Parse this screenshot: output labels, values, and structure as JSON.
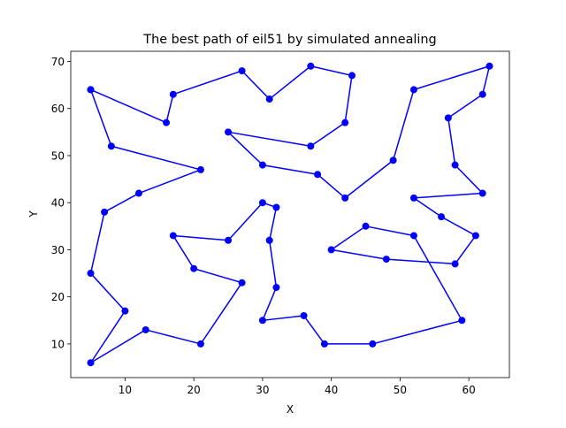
{
  "chart_data": {
    "type": "line",
    "title": "The best path of eil51 by simulated annealing",
    "xlabel": "X",
    "ylabel": "Y",
    "xlim": [
      2.1,
      65.9
    ],
    "ylim": [
      2.85,
      72.15
    ],
    "xticks": [
      10,
      20,
      30,
      40,
      50,
      60
    ],
    "yticks": [
      10,
      20,
      30,
      40,
      50,
      60,
      70
    ],
    "grid": false,
    "legend": "none",
    "series": [
      {
        "color": "#0000ff",
        "marker": "circle",
        "x": [
          5,
          16,
          17,
          27,
          31,
          37,
          43,
          42,
          37,
          25,
          30,
          38,
          42,
          49,
          52,
          63,
          62,
          57,
          58,
          62,
          52,
          56,
          61,
          58,
          48,
          40,
          45,
          52,
          59,
          46,
          39,
          36,
          30,
          32,
          31,
          32,
          30,
          25,
          17,
          20,
          27,
          21,
          13,
          5,
          10,
          5,
          7,
          12,
          21,
          8,
          5
        ],
        "y": [
          64,
          57,
          63,
          68,
          62,
          69,
          67,
          57,
          52,
          55,
          48,
          46,
          41,
          49,
          64,
          69,
          63,
          58,
          48,
          42,
          41,
          37,
          33,
          27,
          28,
          30,
          35,
          33,
          15,
          10,
          10,
          16,
          15,
          22,
          32,
          39,
          40,
          32,
          33,
          26,
          23,
          10,
          13,
          6,
          17,
          25,
          38,
          42,
          47,
          52,
          64
        ]
      }
    ]
  }
}
